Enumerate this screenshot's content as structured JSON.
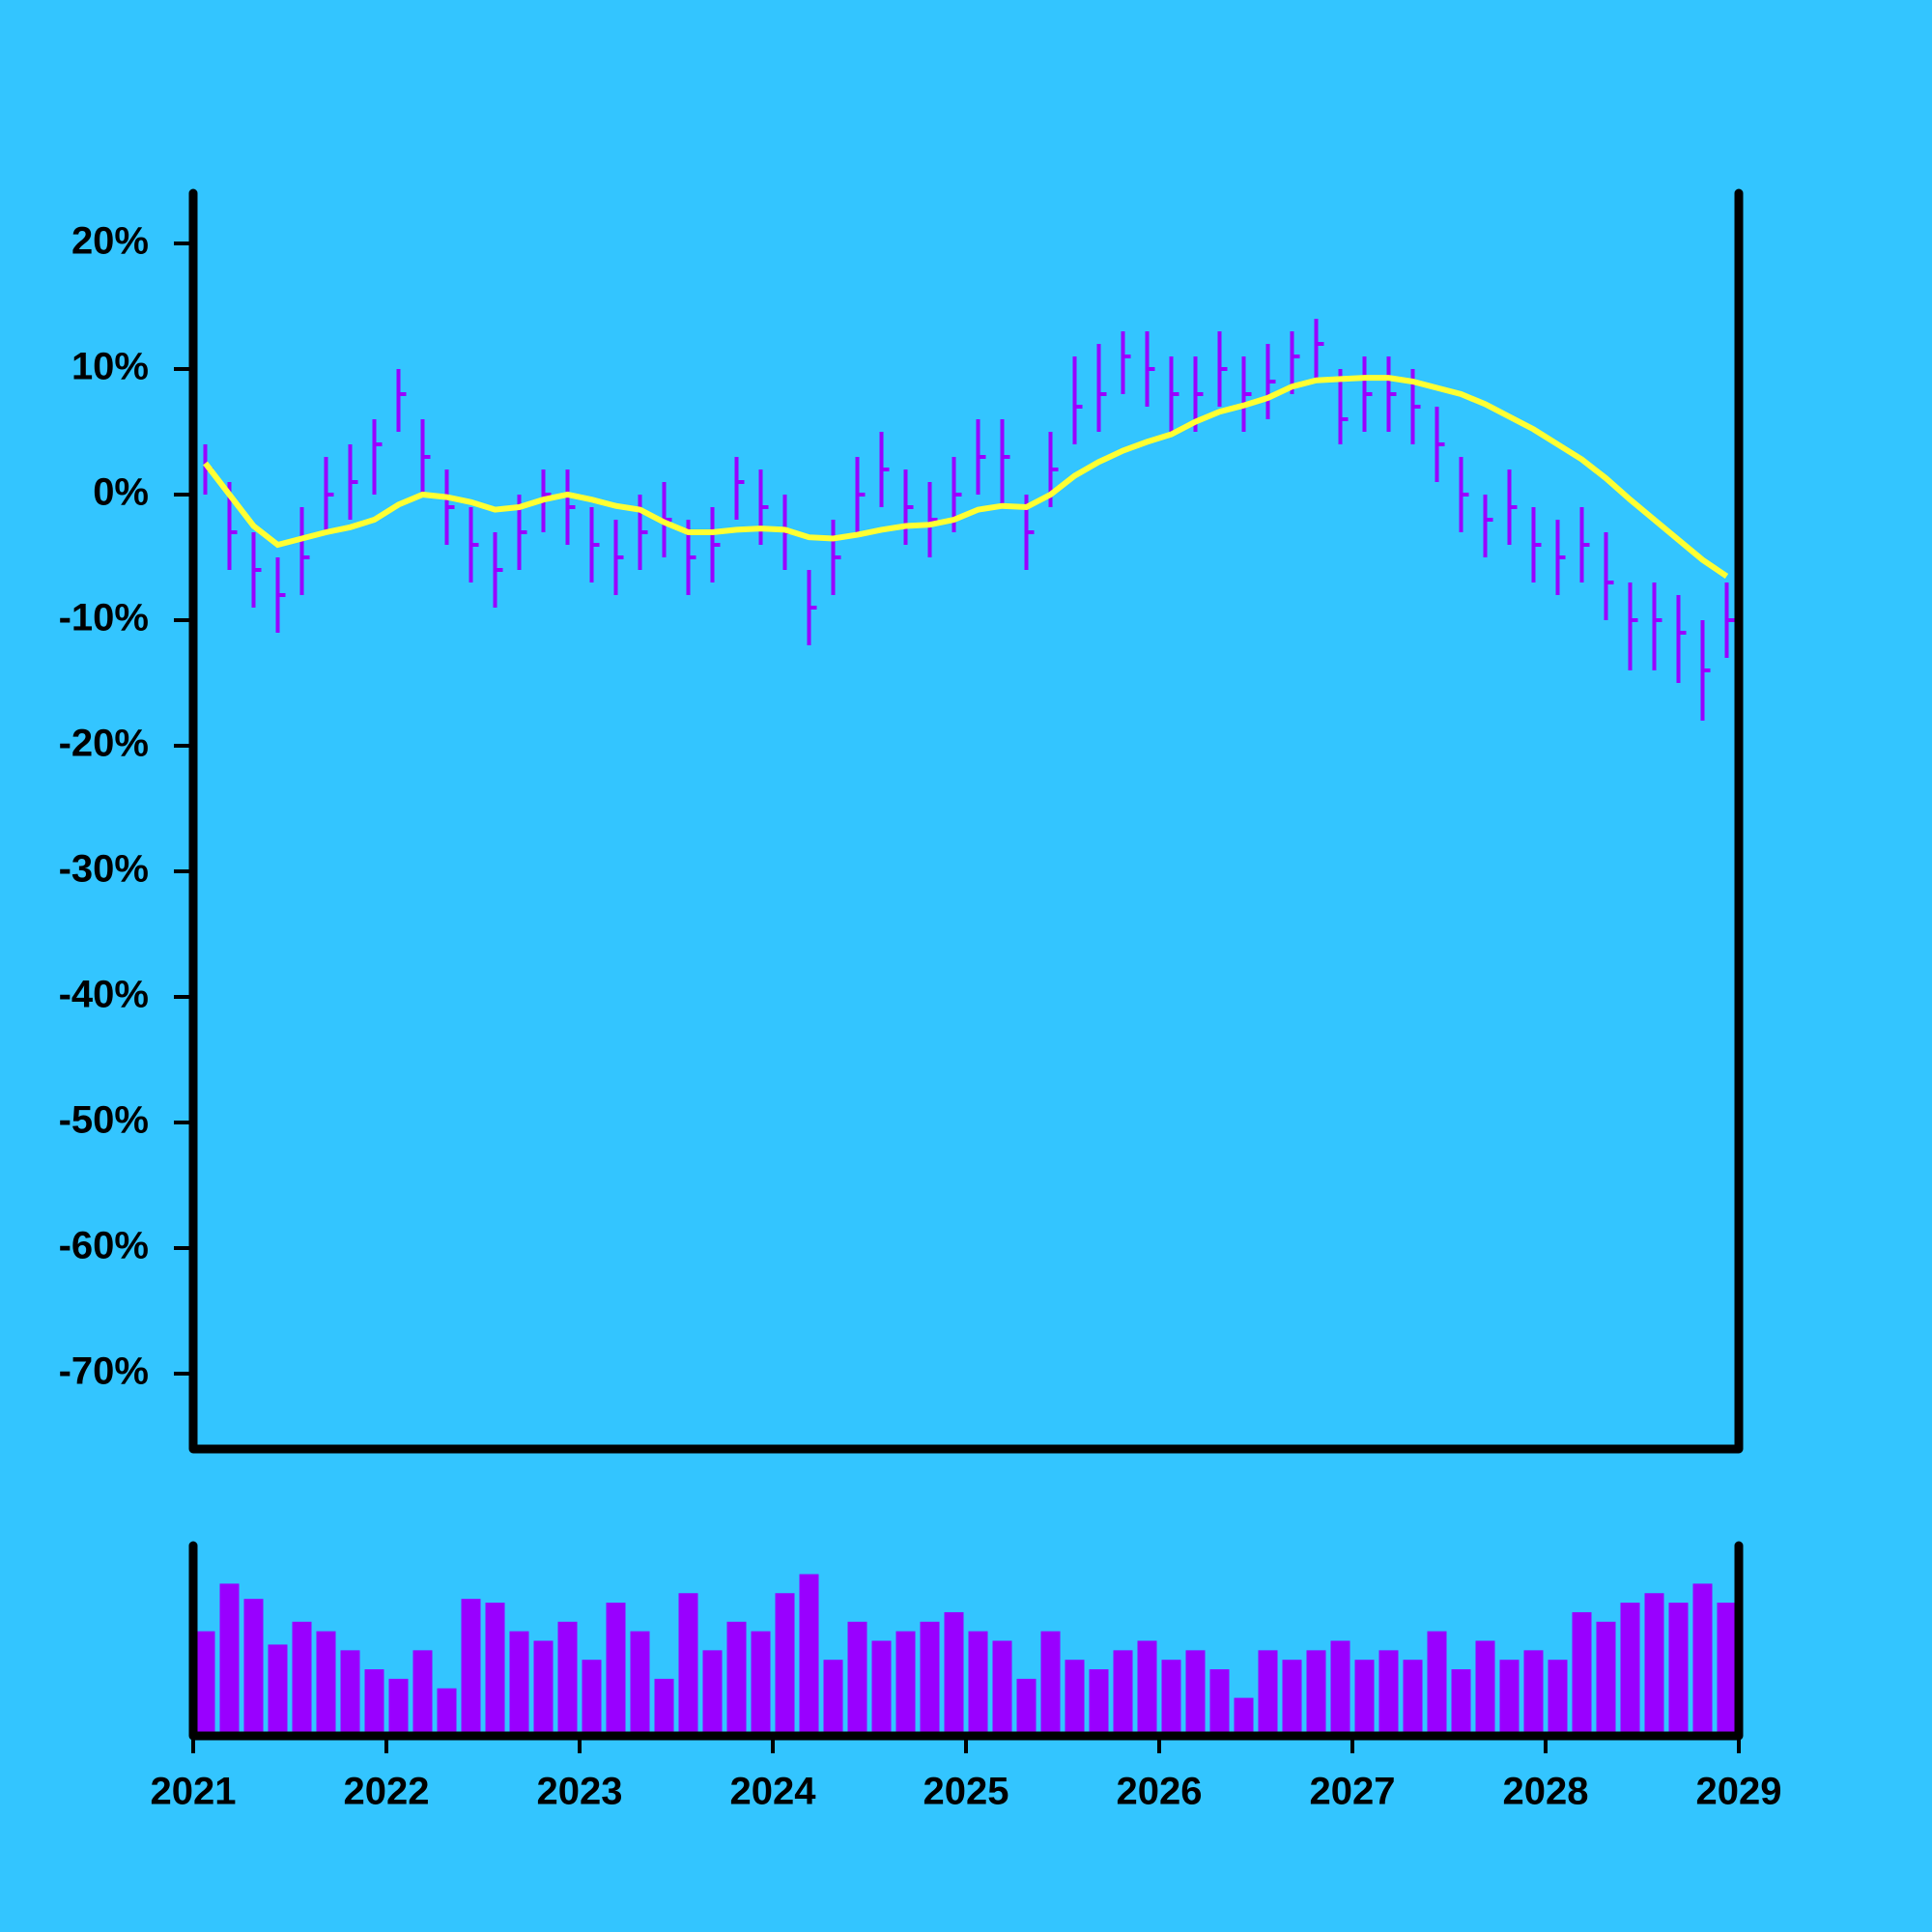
{
  "chart_data": [
    {
      "type": "ohlc",
      "color": "#9900ff",
      "ma_color": "#ffff33",
      "x": [
        2021.0625,
        2021.1875,
        2021.3125,
        2021.4375,
        2021.5625,
        2021.6875,
        2021.8125,
        2021.9375,
        2022.0625,
        2022.1875,
        2022.3125,
        2022.4375,
        2022.5625,
        2022.6875,
        2022.8125,
        2022.9375,
        2023.0625,
        2023.1875,
        2023.3125,
        2023.4375,
        2023.5625,
        2023.6875,
        2023.8125,
        2023.9375,
        2024.0625,
        2024.1875,
        2024.3125,
        2024.4375,
        2024.5625,
        2024.6875,
        2024.8125,
        2024.9375,
        2025.0625,
        2025.1875,
        2025.3125,
        2025.4375,
        2025.5625,
        2025.6875,
        2025.8125,
        2025.9375,
        2026.0625,
        2026.1875,
        2026.3125,
        2026.4375,
        2026.5625,
        2026.6875,
        2026.8125,
        2026.9375,
        2027.0625,
        2027.1875,
        2027.3125,
        2027.4375,
        2027.5625,
        2027.6875,
        2027.8125,
        2027.9375,
        2028.0625,
        2028.1875,
        2028.3125,
        2028.4375,
        2028.5625,
        2028.6875,
        2028.8125,
        2028.9375
      ],
      "high": [
        4,
        1,
        -3,
        -5,
        -1,
        3,
        4,
        6,
        10,
        6,
        2,
        -1,
        -3,
        0,
        2,
        2,
        -1,
        -2,
        0,
        1,
        -2,
        -1,
        3,
        2,
        0,
        -6,
        -2,
        3,
        5,
        2,
        1,
        3,
        6,
        6,
        0,
        5,
        11,
        12,
        13,
        13,
        11,
        11,
        13,
        11,
        12,
        13,
        14,
        10,
        11,
        11,
        10,
        7,
        3,
        0,
        2,
        -1,
        -2,
        -1,
        -3,
        -7,
        -7,
        -8,
        -10,
        -7
      ],
      "low": [
        0,
        -6,
        -9,
        -11,
        -8,
        -3,
        -2,
        0,
        5,
        0,
        -4,
        -7,
        -9,
        -6,
        -3,
        -4,
        -7,
        -8,
        -6,
        -5,
        -8,
        -7,
        -2,
        -4,
        -6,
        -12,
        -8,
        -3,
        -1,
        -4,
        -5,
        -3,
        0,
        -1,
        -6,
        -1,
        4,
        5,
        8,
        7,
        5,
        5,
        7,
        5,
        6,
        8,
        9,
        4,
        5,
        5,
        4,
        1,
        -3,
        -5,
        -4,
        -7,
        -8,
        -7,
        -10,
        -14,
        -14,
        -15,
        -18,
        -13
      ],
      "close": [
        2,
        -3,
        -6,
        -8,
        -5,
        0,
        1,
        4,
        8,
        3,
        -1,
        -4,
        -6,
        -3,
        0,
        -1,
        -4,
        -5,
        -3,
        -2,
        -5,
        -4,
        1,
        -1,
        -3,
        -9,
        -5,
        0,
        2,
        -1,
        -2,
        0,
        3,
        3,
        -3,
        2,
        7,
        8,
        11,
        10,
        8,
        8,
        10,
        8,
        9,
        11,
        12,
        6,
        8,
        8,
        7,
        4,
        0,
        -2,
        -1,
        -4,
        -5,
        -4,
        -7,
        -10,
        -10,
        -11,
        -14,
        -10
      ],
      "ma": [
        2.5,
        0,
        -2.5,
        -4,
        -3.5,
        -3,
        -2.6,
        -2,
        -0.8,
        0,
        -0.2,
        -0.6,
        -1.2,
        -1,
        -0.4,
        0,
        -0.4,
        -0.9,
        -1.2,
        -2.2,
        -3,
        -3,
        -2.8,
        -2.7,
        -2.8,
        -3.4,
        -3.5,
        -3.2,
        -2.8,
        -2.5,
        -2.4,
        -2,
        -1.2,
        -0.9,
        -1,
        0,
        1.5,
        2.6,
        3.5,
        4.2,
        4.8,
        5.8,
        6.6,
        7.1,
        7.7,
        8.6,
        9.1,
        9.2,
        9.3,
        9.3,
        9,
        8.5,
        8,
        7.2,
        6.2,
        5.2,
        4,
        2.8,
        1.3,
        -0.4,
        -2,
        -3.6,
        -5.2,
        -6.5
      ],
      "xlim": [
        2021,
        2029
      ],
      "ylim": [
        -76,
        24
      ],
      "yticks": [
        {
          "value": 20,
          "label": "20%"
        },
        {
          "value": 10,
          "label": "10%"
        },
        {
          "value": 0,
          "label": "0%"
        },
        {
          "value": -10,
          "label": "-10%"
        },
        {
          "value": -20,
          "label": "-20%"
        },
        {
          "value": -30,
          "label": "-30%"
        },
        {
          "value": -40,
          "label": "-40%"
        },
        {
          "value": -50,
          "label": "-50%"
        },
        {
          "value": -60,
          "label": "-60%"
        },
        {
          "value": -70,
          "label": "-70%"
        }
      ]
    },
    {
      "type": "bar",
      "color": "#9900ff",
      "x": [
        2021.0625,
        2021.1875,
        2021.3125,
        2021.4375,
        2021.5625,
        2021.6875,
        2021.8125,
        2021.9375,
        2022.0625,
        2022.1875,
        2022.3125,
        2022.4375,
        2022.5625,
        2022.6875,
        2022.8125,
        2022.9375,
        2023.0625,
        2023.1875,
        2023.3125,
        2023.4375,
        2023.5625,
        2023.6875,
        2023.8125,
        2023.9375,
        2024.0625,
        2024.1875,
        2024.3125,
        2024.4375,
        2024.5625,
        2024.6875,
        2024.8125,
        2024.9375,
        2025.0625,
        2025.1875,
        2025.3125,
        2025.4375,
        2025.5625,
        2025.6875,
        2025.8125,
        2025.9375,
        2026.0625,
        2026.1875,
        2026.3125,
        2026.4375,
        2026.5625,
        2026.6875,
        2026.8125,
        2026.9375,
        2027.0625,
        2027.1875,
        2027.3125,
        2027.4375,
        2027.5625,
        2027.6875,
        2027.8125,
        2027.9375,
        2028.0625,
        2028.1875,
        2028.3125,
        2028.4375,
        2028.5625,
        2028.6875,
        2028.8125,
        2028.9375
      ],
      "values": [
        55,
        80,
        72,
        48,
        60,
        55,
        45,
        35,
        30,
        45,
        25,
        72,
        70,
        55,
        50,
        60,
        40,
        70,
        55,
        30,
        75,
        45,
        60,
        55,
        75,
        85,
        40,
        60,
        50,
        55,
        60,
        65,
        55,
        50,
        30,
        55,
        40,
        35,
        45,
        50,
        40,
        45,
        35,
        20,
        45,
        40,
        45,
        50,
        40,
        45,
        40,
        55,
        35,
        50,
        40,
        45,
        40,
        65,
        60,
        70,
        75,
        70,
        80,
        70
      ],
      "xlim": [
        2021,
        2029
      ],
      "ylim": [
        0,
        100
      ],
      "xticks": [
        2021,
        2022,
        2023,
        2024,
        2025,
        2026,
        2027,
        2028,
        2029
      ]
    }
  ]
}
